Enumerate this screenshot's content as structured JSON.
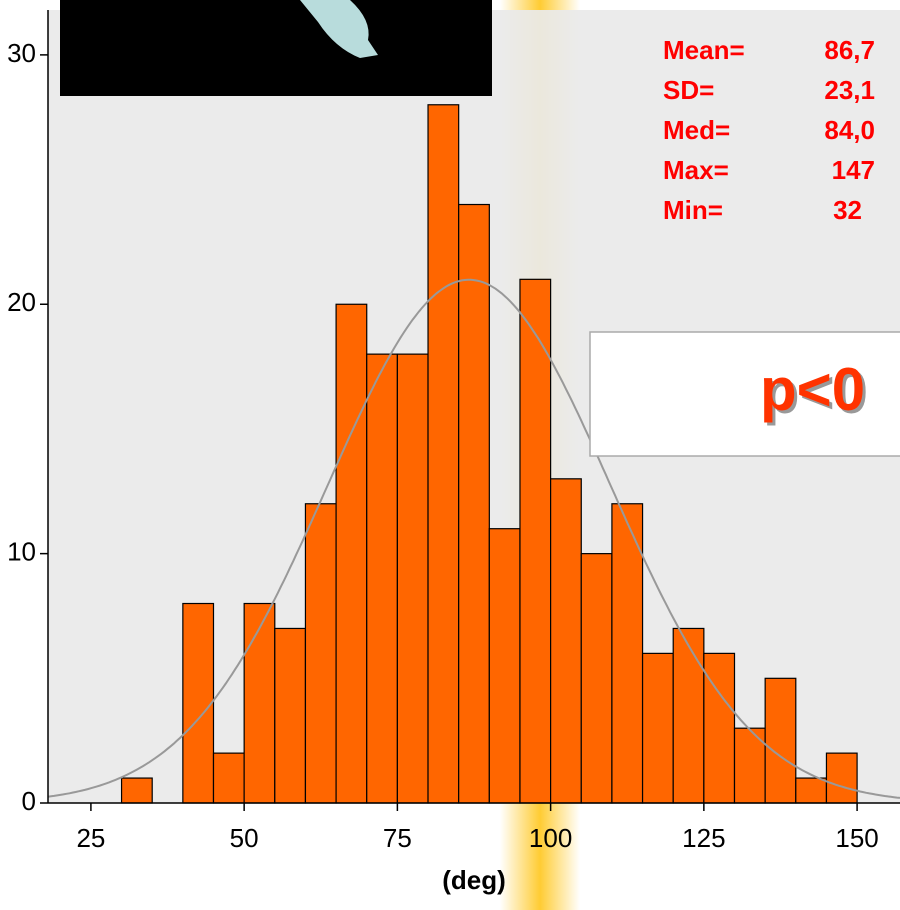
{
  "chart_data": {
    "type": "histogram",
    "x_label": "(deg)",
    "bins": [
      30,
      35,
      40,
      45,
      50,
      55,
      60,
      65,
      70,
      75,
      80,
      85,
      90,
      95,
      100,
      105,
      110,
      115,
      120,
      125,
      130,
      135,
      140,
      145,
      150
    ],
    "values": [
      1,
      0,
      8,
      2,
      8,
      7,
      12,
      20,
      18,
      18,
      28,
      24,
      11,
      21,
      13,
      10,
      12,
      6,
      7,
      6,
      3,
      5,
      1,
      2
    ],
    "color": "#ff6600",
    "curve_color": "#999999",
    "xlim": [
      18,
      157
    ],
    "ylim": [
      0,
      31.8
    ],
    "xticks": [
      25,
      50,
      75,
      100,
      125,
      150
    ],
    "yticks": [
      0,
      10,
      20,
      30
    ],
    "stats": [
      {
        "label": "Mean=",
        "value": 86.7,
        "value_label": "86,7"
      },
      {
        "label": "SD=",
        "value": 23.1,
        "value_label": "23,1"
      },
      {
        "label": "Med=",
        "value": 84.0,
        "value_label": "84,0"
      },
      {
        "label": "Max=",
        "value": 147
      },
      {
        "label": "Min=",
        "value": 32
      }
    ],
    "annotation": "p<0"
  }
}
